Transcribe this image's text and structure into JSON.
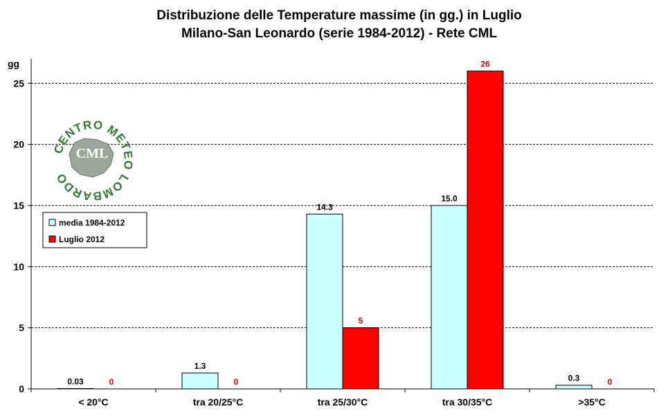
{
  "chart_data": {
    "type": "bar",
    "title": "Distribuzione  delle  Temperature  massime  (in  gg.)  in  Luglio",
    "subtitle": "Milano-San  Leonardo  (serie  1984-2012)  - Rete  CML",
    "ylabel": "gg",
    "xlabel": "",
    "ylim": [
      0,
      27
    ],
    "yticks": [
      0,
      5,
      10,
      15,
      20,
      25
    ],
    "grid": true,
    "legend_position": "left",
    "categories": [
      "< 20°C",
      "tra 20/25°C",
      "tra 25/30°C",
      "tra 30/35°C",
      ">35°C"
    ],
    "series": [
      {
        "name": "media 1984-2012",
        "values": [
          0.03,
          1.3,
          14.3,
          15.0,
          0.3
        ],
        "labels": [
          "0.03",
          "1.3",
          "14.3",
          "15.0",
          "0.3"
        ],
        "color": "#ccffff",
        "label_color": "#000000"
      },
      {
        "name": "Luglio 2012",
        "values": [
          0,
          0,
          5,
          26,
          0
        ],
        "labels": [
          "0",
          "0",
          "5",
          "26",
          "0"
        ],
        "color": "#ff0000",
        "label_color": "#e00000"
      }
    ]
  },
  "logo": {
    "top_text": "METEO",
    "center_text": "CML",
    "ring_text": "CENTRO METEO LOMBARDO",
    "color": "#2e7d32"
  }
}
